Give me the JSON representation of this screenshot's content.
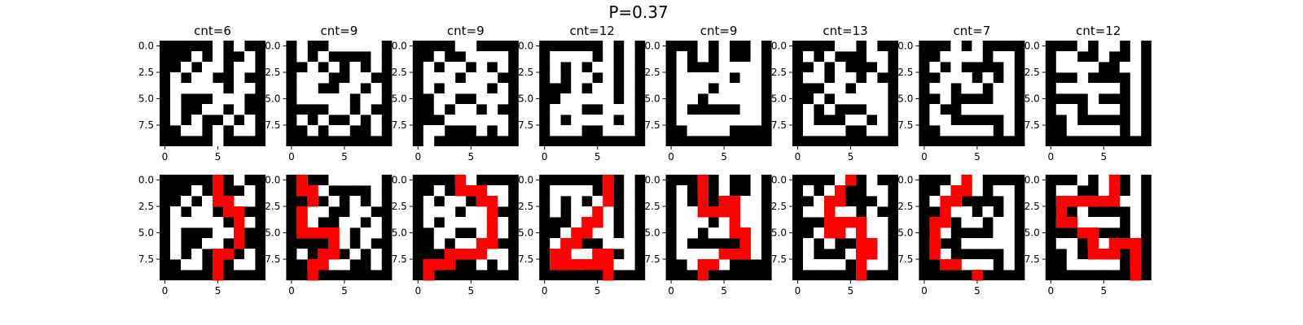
{
  "chart_data": {
    "type": "heatmap",
    "title": "P=0.37",
    "grid_size": 10,
    "xticks": [
      "0",
      "5"
    ],
    "yticks": [
      "0.0",
      "2.5",
      "5.0",
      "7.5"
    ],
    "colors": {
      "wall": "#000000",
      "open": "#ffffff",
      "path": "#ff0000"
    },
    "panels": [
      {
        "title": "cnt=6",
        "grid": [
          "0000010100",
          "0001010010",
          "0010110110",
          "0101100100",
          "0111110110",
          "0100011100",
          "0100110100",
          "0101001010",
          "0011010110",
          "0000010000"
        ],
        "path": [
          [
            0,
            5
          ],
          [
            1,
            5
          ],
          [
            2,
            5
          ],
          [
            2,
            6
          ],
          [
            3,
            6
          ],
          [
            3,
            7
          ],
          [
            4,
            7
          ],
          [
            5,
            7
          ],
          [
            6,
            7
          ],
          [
            7,
            6
          ],
          [
            7,
            5
          ],
          [
            8,
            5
          ],
          [
            9,
            5
          ]
        ]
      },
      {
        "title": "cnt=9",
        "grid": [
          "0100111110",
          "0101000010",
          "0010101010",
          "0111001100",
          "0110011010",
          "0111110110",
          "0000110100",
          "0101001010",
          "0010110010",
          "0000000000"
        ],
        "path": [
          [
            0,
            1
          ],
          [
            1,
            1
          ],
          [
            1,
            2
          ],
          [
            2,
            2
          ],
          [
            3,
            1
          ],
          [
            4,
            1
          ],
          [
            5,
            1
          ],
          [
            5,
            2
          ],
          [
            5,
            3
          ],
          [
            5,
            4
          ],
          [
            6,
            4
          ],
          [
            7,
            4
          ],
          [
            7,
            3
          ],
          [
            8,
            3
          ],
          [
            8,
            2
          ],
          [
            9,
            2
          ]
        ]
      },
      {
        "title": "cnt=9",
        "grid": [
          "0000110000",
          "0010011110",
          "0101101010",
          "0111011100",
          "0101111010",
          "0011001110",
          "0010110100",
          "0001111110",
          "0110001010",
          "0100000000"
        ],
        "path": [
          [
            0,
            4
          ],
          [
            1,
            4
          ],
          [
            1,
            5
          ],
          [
            1,
            6
          ],
          [
            2,
            6
          ],
          [
            2,
            7
          ],
          [
            3,
            7
          ],
          [
            4,
            7
          ],
          [
            5,
            7
          ],
          [
            6,
            6
          ],
          [
            6,
            7
          ],
          [
            7,
            3
          ],
          [
            7,
            4
          ],
          [
            7,
            5
          ],
          [
            7,
            6
          ],
          [
            8,
            1
          ],
          [
            8,
            2
          ],
          [
            8,
            3
          ],
          [
            9,
            1
          ]
        ]
      },
      {
        "title": "cnt=12",
        "grid": [
          "0000001010",
          "0111101010",
          "0101011010",
          "0101101010",
          "0001011010",
          "0011111010",
          "0111001110",
          "0101111010",
          "0111001110",
          "0000000000"
        ],
        "path": [
          [
            0,
            6
          ],
          [
            1,
            6
          ],
          [
            2,
            6
          ],
          [
            3,
            5
          ],
          [
            4,
            4
          ],
          [
            4,
            5
          ],
          [
            5,
            3
          ],
          [
            5,
            4
          ],
          [
            6,
            2
          ],
          [
            6,
            3
          ],
          [
            7,
            1
          ],
          [
            7,
            2
          ],
          [
            8,
            1
          ],
          [
            8,
            2
          ],
          [
            8,
            3
          ],
          [
            8,
            4
          ],
          [
            8,
            5
          ],
          [
            7,
            5
          ],
          [
            7,
            6
          ],
          [
            8,
            6
          ],
          [
            9,
            6
          ]
        ]
      },
      {
        "title": "cnt=9",
        "grid": [
          "0001010010",
          "0101010010",
          "0100011110",
          "0111110110",
          "0111011110",
          "0110111110",
          "0100000110",
          "0111111110",
          "0011110000",
          "0000000000"
        ],
        "path": [
          [
            0,
            3
          ],
          [
            1,
            3
          ],
          [
            2,
            3
          ],
          [
            3,
            3
          ],
          [
            3,
            4
          ],
          [
            3,
            5
          ],
          [
            3,
            6
          ],
          [
            2,
            5
          ],
          [
            2,
            6
          ],
          [
            4,
            6
          ],
          [
            5,
            6
          ],
          [
            5,
            7
          ],
          [
            6,
            7
          ],
          [
            7,
            7
          ],
          [
            7,
            6
          ],
          [
            7,
            5
          ],
          [
            8,
            4
          ],
          [
            8,
            3
          ],
          [
            9,
            3
          ]
        ]
      },
      {
        "title": "cnt=13",
        "grid": [
          "0000110100",
          "0101000110",
          "0010100010",
          "0110110100",
          "0001101110",
          "0010111110",
          "0101000110",
          "0100011010",
          "0111100110",
          "0000000000"
        ],
        "path": [
          [
            0,
            5
          ],
          [
            1,
            4
          ],
          [
            2,
            3
          ],
          [
            2,
            4
          ],
          [
            3,
            3
          ],
          [
            4,
            3
          ],
          [
            5,
            3
          ],
          [
            5,
            4
          ],
          [
            4,
            4
          ],
          [
            4,
            5
          ],
          [
            4,
            6
          ],
          [
            5,
            6
          ],
          [
            6,
            6
          ],
          [
            6,
            7
          ],
          [
            7,
            6
          ],
          [
            7,
            7
          ],
          [
            8,
            6
          ],
          [
            9,
            6
          ]
        ]
      },
      {
        "title": "cnt=7",
        "grid": [
          "0001010000",
          "0011110110",
          "0101000010",
          "0011101010",
          "0110110110",
          "0010000110",
          "0100111110",
          "0110000010",
          "0011111010",
          "0000000000"
        ],
        "path": [
          [
            0,
            4
          ],
          [
            1,
            3
          ],
          [
            1,
            4
          ],
          [
            2,
            2
          ],
          [
            2,
            3
          ],
          [
            3,
            2
          ],
          [
            4,
            1
          ],
          [
            4,
            2
          ],
          [
            5,
            1
          ],
          [
            6,
            1
          ],
          [
            7,
            1
          ],
          [
            8,
            2
          ],
          [
            8,
            3
          ],
          [
            9,
            5
          ]
        ]
      },
      {
        "title": "cnt=12",
        "grid": [
          "0001011010",
          "0110010010",
          "0111100110",
          "0001000010",
          "0111111010",
          "0000100010",
          "0110111010",
          "0010000010",
          "0011111010",
          "0000000000"
        ],
        "path": [
          [
            0,
            6
          ],
          [
            1,
            6
          ],
          [
            2,
            1
          ],
          [
            2,
            2
          ],
          [
            2,
            3
          ],
          [
            2,
            4
          ],
          [
            2,
            5
          ],
          [
            2,
            6
          ],
          [
            3,
            1
          ],
          [
            4,
            1
          ],
          [
            4,
            2
          ],
          [
            5,
            3
          ],
          [
            5,
            4
          ],
          [
            6,
            4
          ],
          [
            7,
            4
          ],
          [
            7,
            5
          ],
          [
            7,
            6
          ],
          [
            6,
            6
          ],
          [
            6,
            7
          ],
          [
            6,
            8
          ],
          [
            7,
            8
          ],
          [
            8,
            8
          ],
          [
            9,
            8
          ]
        ]
      }
    ]
  }
}
